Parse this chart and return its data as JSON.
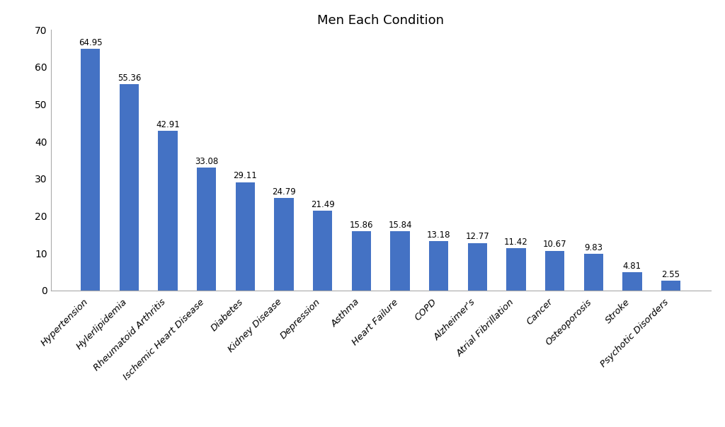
{
  "title": "Men Each Condition",
  "categories": [
    "Hypertension",
    "Hylerlipidemia",
    "Rheumatoid Arthritis",
    "Ischemic Heart Disease",
    "Diabetes",
    "Kidney Disease",
    "Depression",
    "Asthma",
    "Heart Failure",
    "COPD",
    "Alzheimer's",
    "Atrial Fibrillation",
    "Cancer",
    "Osteoporosis",
    "Stroke",
    "Psychotic Disorders"
  ],
  "values": [
    64.95,
    55.36,
    42.91,
    33.08,
    29.11,
    24.79,
    21.49,
    15.86,
    15.84,
    13.18,
    12.77,
    11.42,
    10.67,
    9.83,
    4.81,
    2.55
  ],
  "bar_color": "#4472C4",
  "ylim": [
    0,
    70
  ],
  "yticks": [
    0,
    10,
    20,
    30,
    40,
    50,
    60,
    70
  ],
  "value_label_fontsize": 8.5,
  "xlabel_fontsize": 9.5,
  "ylabel_fontsize": 10,
  "title_fontsize": 13,
  "background_color": "#ffffff",
  "label_color": "#000000",
  "bar_width": 0.5
}
